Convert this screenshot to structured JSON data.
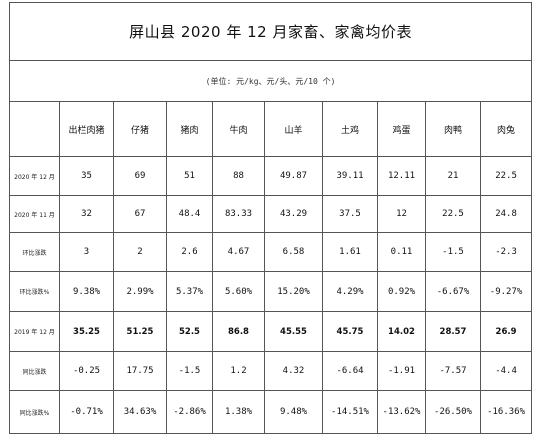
{
  "title": "屏山县 2020 年 12 月家畜、家禽均价表",
  "unit_note": "(单位: 元/kg、元/头、元/10 个)",
  "columns": [
    "出栏肉猪",
    "仔猪",
    "猪肉",
    "牛肉",
    "山羊",
    "土鸡",
    "鸡蛋",
    "肉鸭",
    "肉兔"
  ],
  "rows": [
    {
      "label": "2020 年 12 月",
      "values": [
        "35",
        "69",
        "51",
        "88",
        "49.87",
        "39.11",
        "12.11",
        "21",
        "22.5"
      ]
    },
    {
      "label": "2020 年 11 月",
      "values": [
        "32",
        "67",
        "48.4",
        "83.33",
        "43.29",
        "37.5",
        "12",
        "22.5",
        "24.8"
      ]
    },
    {
      "label": "环比涨跌",
      "values": [
        "3",
        "2",
        "2.6",
        "4.67",
        "6.58",
        "1.61",
        "0.11",
        "-1.5",
        "-2.3"
      ]
    },
    {
      "label": "环比涨跌%",
      "values": [
        "9.38%",
        "2.99%",
        "5.37%",
        "5.60%",
        "15.20%",
        "4.29%",
        "0.92%",
        "-6.67%",
        "-9.27%"
      ]
    },
    {
      "label": "2019 年 12 月",
      "values": [
        "35.25",
        "51.25",
        "52.5",
        "86.8",
        "45.55",
        "45.75",
        "14.02",
        "28.57",
        "26.9"
      ]
    },
    {
      "label": "同比涨跌",
      "values": [
        "-0.25",
        "17.75",
        "-1.5",
        "1.2",
        "4.32",
        "-6.64",
        "-1.91",
        "-7.57",
        "-4.4"
      ]
    },
    {
      "label": "同比涨跌%",
      "values": [
        "-0.71%",
        "34.63%",
        "-2.86%",
        "1.38%",
        "9.48%",
        "-14.51%",
        "-13.62%",
        "-26.50%",
        "-16.36%"
      ]
    }
  ]
}
